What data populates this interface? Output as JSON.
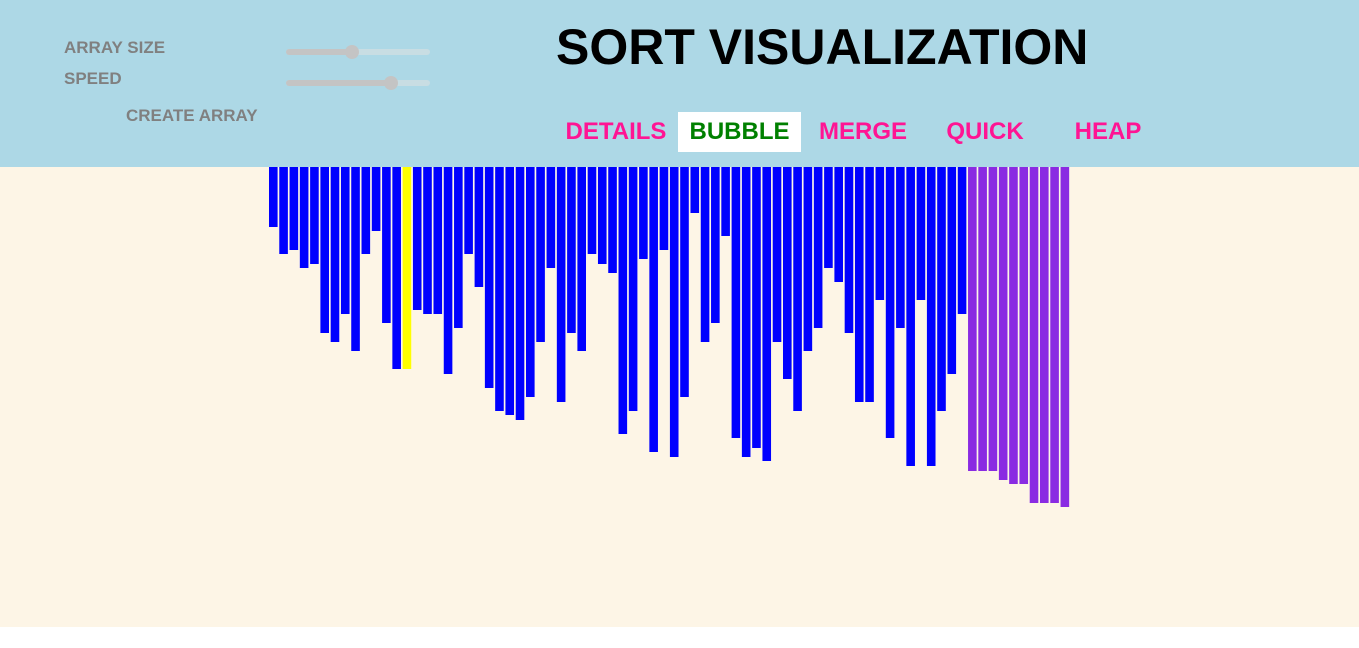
{
  "controls": {
    "array_size_label": "ARRAY SIZE",
    "array_size_fraction": 0.46,
    "speed_label": "SPEED",
    "speed_fraction": 0.73,
    "create_array_label": "CREATE ARRAY"
  },
  "header": {
    "title": "SORT VISUALIZATION"
  },
  "nav": {
    "details": "DETAILS",
    "bubble": "BUBBLE",
    "merge": "MERGE",
    "quick": "QUICK",
    "heap": "HEAP",
    "active": "bubble"
  },
  "array": {
    "values": [
      60,
      87,
      83,
      101,
      97,
      166,
      175,
      147,
      184,
      87,
      64,
      156,
      202,
      202,
      143,
      147,
      147,
      207,
      161,
      87,
      120,
      221,
      244,
      248,
      253,
      230,
      175,
      101,
      235,
      166,
      184,
      87,
      97,
      106,
      267,
      244,
      92,
      285,
      83,
      290,
      230,
      46,
      175,
      156,
      69,
      271,
      290,
      281,
      294,
      175,
      212,
      244,
      184,
      161,
      101,
      115,
      166,
      235,
      235,
      133,
      271,
      161,
      299,
      133,
      299,
      244,
      207,
      147,
      304,
      304,
      304,
      313,
      317,
      317,
      336,
      336,
      336,
      340
    ],
    "sorted_count": 10,
    "comparing_index": 13
  },
  "colors": {
    "header_bg": "#add8e6",
    "canvas_bg": "#fdf5e6",
    "bar_default": "#0000ff",
    "bar_compare": "#ffff00",
    "bar_sorted": "#8a2be2",
    "nav_text": "#ff1493",
    "nav_active_text": "#008000",
    "nav_active_bg": "#ffffff",
    "control_text": "#808080",
    "slider_track": "#c8dde3",
    "slider_fill": "#c4c4c4",
    "slider_thumb": "#c4c4c4"
  }
}
